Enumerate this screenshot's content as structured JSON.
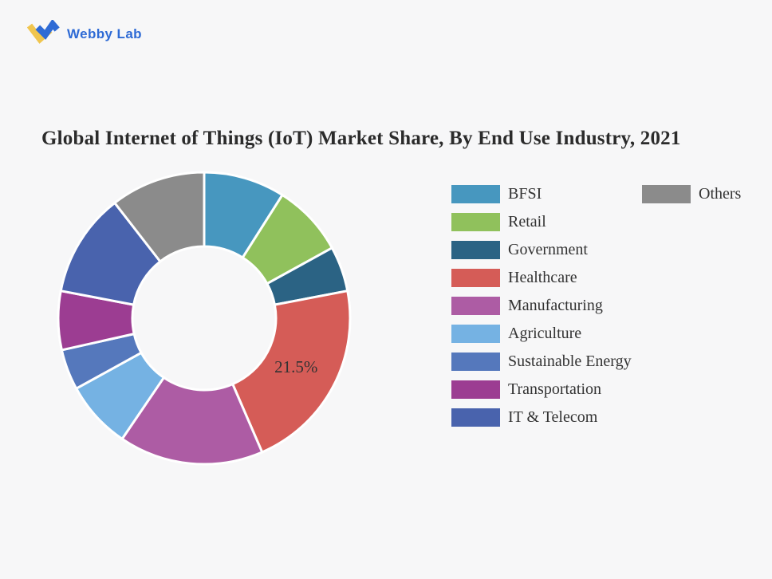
{
  "page": {
    "background": "#f7f7f8"
  },
  "logo": {
    "brand_text": "Webby Lab",
    "text_color": "#2f6bd5",
    "icon_yellow": "#f0c54e",
    "icon_blue": "#2f6bd5"
  },
  "title": "Global Internet of Things (IoT) Market Share, By End Use Industry, 2021",
  "chart_data": {
    "type": "pie",
    "variant": "donut",
    "title": "Global Internet of Things (IoT) Market Share, By End Use Industry, 2021",
    "unit": "%",
    "direction": "clockwise",
    "start_angle_deg": 0,
    "inner_radius_ratio": 0.49,
    "gap_color": "#ffffff",
    "label_color": "#333333",
    "legend_position": "right",
    "legend_columns": 2,
    "visible_data_labels": [
      "21.5%"
    ],
    "segments": [
      {
        "label": "BFSI",
        "value": 9,
        "color": "#4797bf",
        "legend_column": 1
      },
      {
        "label": "Retail",
        "value": 8,
        "color": "#90c15c",
        "legend_column": 1
      },
      {
        "label": "Government",
        "value": 5,
        "color": "#2b6384",
        "legend_column": 1
      },
      {
        "label": "Healthcare",
        "value": 21.5,
        "color": "#d55c57",
        "legend_column": 1,
        "data_label": "21.5%"
      },
      {
        "label": "Manufacturing",
        "value": 16,
        "color": "#ad5ca4",
        "legend_column": 1
      },
      {
        "label": "Agriculture",
        "value": 7.5,
        "color": "#75b2e3",
        "legend_column": 1
      },
      {
        "label": "Sustainable Energy",
        "value": 4.5,
        "color": "#5578bc",
        "legend_column": 1
      },
      {
        "label": "Transportation",
        "value": 6.5,
        "color": "#9c3d92",
        "legend_column": 1
      },
      {
        "label": "IT & Telecom",
        "value": 11.5,
        "color": "#4963ad",
        "legend_column": 1
      },
      {
        "label": "Others",
        "value": 10.5,
        "color": "#8b8b8b",
        "legend_column": 2
      }
    ]
  }
}
